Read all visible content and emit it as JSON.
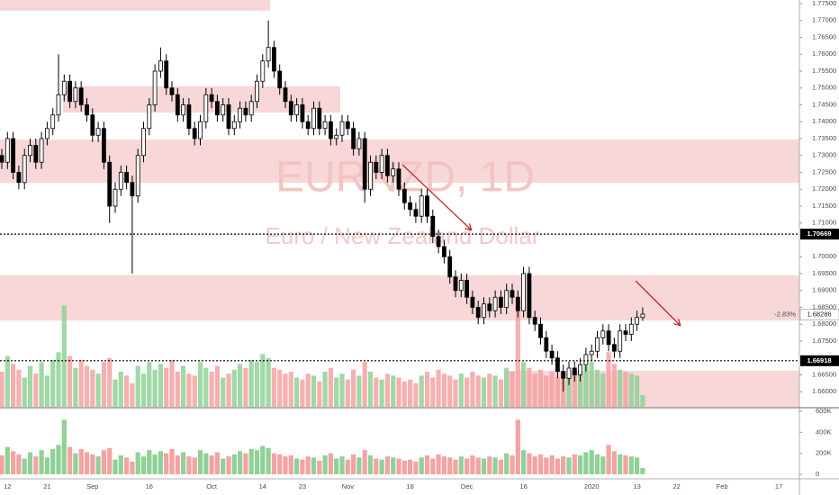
{
  "chart_data": {
    "type": "candlestick",
    "title": "EURNZD, 1D",
    "subtitle": "Euro / New Zealand Dollar",
    "categories": [
      null,
      "12",
      null,
      null,
      null,
      null,
      null,
      null,
      "21",
      null,
      null,
      null,
      null,
      null,
      null,
      null,
      "Sep",
      null,
      null,
      null,
      null,
      null,
      null,
      null,
      null,
      null,
      "16",
      null,
      null,
      null,
      null,
      null,
      null,
      null,
      null,
      null,
      null,
      "Oct",
      null,
      null,
      null,
      null,
      null,
      null,
      null,
      null,
      "14",
      null,
      null,
      null,
      null,
      null,
      null,
      "23",
      null,
      null,
      null,
      null,
      null,
      null,
      null,
      "Nov",
      null,
      null,
      null,
      null,
      null,
      null,
      null,
      null,
      null,
      null,
      "18",
      null,
      null,
      null,
      null,
      null,
      null,
      null,
      null,
      null,
      "Dec",
      null,
      null,
      null,
      null,
      null,
      null,
      null,
      null,
      null,
      "16",
      null,
      null,
      null,
      null,
      null,
      null,
      null,
      null,
      null,
      null,
      null,
      "2020",
      null,
      null,
      null,
      null,
      null,
      null,
      null,
      "13",
      null,
      null,
      null,
      null,
      null,
      null,
      "22",
      null,
      null,
      null,
      null,
      null,
      null,
      null,
      "Feb",
      null,
      null,
      null,
      null,
      null,
      null,
      null,
      null,
      null,
      "17",
      null,
      null
    ],
    "open": [
      1.73,
      1.728,
      1.735,
      1.725,
      1.722,
      1.73,
      1.733,
      1.728,
      1.735,
      1.738,
      1.742,
      1.748,
      1.752,
      1.746,
      1.75,
      1.745,
      1.742,
      1.736,
      1.738,
      1.728,
      1.715,
      1.72,
      1.725,
      1.722,
      1.718,
      1.73,
      1.738,
      1.745,
      1.755,
      1.758,
      1.75,
      1.748,
      1.742,
      1.745,
      1.738,
      1.735,
      1.74,
      1.748,
      1.746,
      1.742,
      1.745,
      1.738,
      1.74,
      1.744,
      1.742,
      1.746,
      1.752,
      1.758,
      1.762,
      1.755,
      1.75,
      1.746,
      1.742,
      1.745,
      1.74,
      1.738,
      1.744,
      1.738,
      1.74,
      1.735,
      1.736,
      1.74,
      1.738,
      1.732,
      1.735,
      1.72,
      1.728,
      1.725,
      1.73,
      1.724,
      1.726,
      1.72,
      1.716,
      1.714,
      1.712,
      1.718,
      1.712,
      1.706,
      1.703,
      1.7,
      1.694,
      1.69,
      1.693,
      1.688,
      1.685,
      1.682,
      1.686,
      1.684,
      1.688,
      1.685,
      1.69,
      1.688,
      1.684,
      1.695,
      1.682,
      1.68,
      1.676,
      1.672,
      1.67,
      1.666,
      1.664,
      1.667,
      1.665,
      1.668,
      1.671,
      1.672,
      1.676,
      1.678,
      1.674,
      1.672,
      1.678,
      1.677,
      1.68,
      1.682,
      null,
      null,
      null,
      null,
      null,
      null,
      null,
      null,
      null,
      null,
      null,
      null,
      null,
      null,
      null,
      null,
      null,
      null,
      null,
      null,
      null,
      null,
      null,
      null,
      null,
      null
    ],
    "high": [
      1.732,
      1.737,
      1.737,
      1.727,
      1.732,
      1.735,
      1.735,
      1.737,
      1.74,
      1.744,
      1.76,
      1.754,
      1.754,
      1.752,
      1.752,
      1.747,
      1.744,
      1.74,
      1.74,
      1.73,
      1.722,
      1.727,
      1.727,
      1.724,
      1.732,
      1.74,
      1.747,
      1.757,
      1.762,
      1.76,
      1.752,
      1.75,
      1.747,
      1.747,
      1.74,
      1.742,
      1.75,
      1.75,
      1.748,
      1.747,
      1.747,
      1.742,
      1.746,
      1.746,
      1.748,
      1.754,
      1.76,
      1.77,
      1.764,
      1.757,
      1.752,
      1.748,
      1.747,
      1.747,
      1.742,
      1.746,
      1.746,
      1.742,
      1.742,
      1.738,
      1.742,
      1.742,
      1.74,
      1.737,
      1.737,
      1.73,
      1.73,
      1.732,
      1.732,
      1.728,
      1.728,
      1.722,
      1.718,
      1.716,
      1.72,
      1.72,
      1.714,
      1.708,
      1.705,
      1.702,
      1.696,
      1.695,
      1.695,
      1.69,
      1.687,
      1.688,
      1.688,
      1.69,
      1.69,
      1.692,
      1.692,
      1.69,
      1.697,
      1.697,
      1.684,
      1.682,
      1.678,
      1.674,
      1.672,
      1.668,
      1.669,
      1.669,
      1.67,
      1.673,
      1.674,
      1.678,
      1.68,
      1.68,
      1.676,
      1.68,
      1.68,
      1.682,
      1.684,
      1.685,
      null,
      null,
      null,
      null,
      null,
      null,
      null,
      null,
      null,
      null,
      null,
      null,
      null,
      null,
      null,
      null,
      null,
      null,
      null,
      null,
      null,
      null,
      null,
      null,
      null,
      null
    ],
    "low": [
      1.726,
      1.726,
      1.723,
      1.72,
      1.72,
      1.728,
      1.726,
      1.726,
      1.733,
      1.736,
      1.74,
      1.746,
      1.744,
      1.744,
      1.743,
      1.74,
      1.734,
      1.734,
      1.726,
      1.71,
      1.713,
      1.718,
      1.72,
      1.695,
      1.716,
      1.728,
      1.736,
      1.743,
      1.753,
      1.748,
      1.746,
      1.74,
      1.74,
      1.736,
      1.733,
      1.733,
      1.738,
      1.744,
      1.74,
      1.74,
      1.736,
      1.736,
      1.738,
      1.74,
      1.74,
      1.744,
      1.75,
      1.756,
      1.753,
      1.748,
      1.744,
      1.74,
      1.74,
      1.738,
      1.736,
      1.736,
      1.736,
      1.736,
      1.733,
      1.733,
      1.734,
      1.736,
      1.73,
      1.73,
      1.716,
      1.718,
      1.723,
      1.723,
      1.722,
      1.722,
      1.718,
      1.714,
      1.712,
      1.71,
      1.71,
      1.71,
      1.704,
      1.701,
      1.698,
      1.692,
      1.688,
      1.688,
      1.686,
      1.683,
      1.68,
      1.68,
      1.682,
      1.682,
      1.683,
      1.683,
      1.686,
      1.682,
      1.682,
      1.68,
      1.678,
      1.674,
      1.67,
      1.668,
      1.664,
      1.66,
      1.662,
      1.663,
      1.663,
      1.666,
      1.669,
      1.67,
      1.674,
      1.672,
      1.67,
      1.67,
      1.675,
      1.675,
      1.678,
      1.681,
      null,
      null,
      null,
      null,
      null,
      null,
      null,
      null,
      null,
      null,
      null,
      null,
      null,
      null,
      null,
      null,
      null,
      null,
      null,
      null,
      null,
      null,
      null,
      null,
      null,
      null
    ],
    "close": [
      1.728,
      1.735,
      1.725,
      1.722,
      1.73,
      1.733,
      1.728,
      1.735,
      1.738,
      1.742,
      1.748,
      1.752,
      1.746,
      1.75,
      1.745,
      1.742,
      1.736,
      1.738,
      1.728,
      1.715,
      1.72,
      1.725,
      1.722,
      1.718,
      1.73,
      1.738,
      1.745,
      1.755,
      1.758,
      1.75,
      1.748,
      1.742,
      1.745,
      1.738,
      1.735,
      1.74,
      1.748,
      1.746,
      1.742,
      1.745,
      1.738,
      1.74,
      1.744,
      1.742,
      1.746,
      1.752,
      1.758,
      1.762,
      1.755,
      1.75,
      1.746,
      1.742,
      1.745,
      1.74,
      1.738,
      1.744,
      1.738,
      1.74,
      1.735,
      1.736,
      1.74,
      1.738,
      1.732,
      1.735,
      1.72,
      1.728,
      1.725,
      1.73,
      1.724,
      1.726,
      1.72,
      1.716,
      1.714,
      1.712,
      1.718,
      1.712,
      1.706,
      1.703,
      1.7,
      1.694,
      1.69,
      1.693,
      1.688,
      1.685,
      1.682,
      1.686,
      1.684,
      1.688,
      1.685,
      1.69,
      1.688,
      1.684,
      1.695,
      1.682,
      1.68,
      1.676,
      1.672,
      1.67,
      1.666,
      1.664,
      1.667,
      1.665,
      1.668,
      1.671,
      1.672,
      1.676,
      1.678,
      1.674,
      1.672,
      1.678,
      1.677,
      1.68,
      1.682,
      1.683,
      null,
      null,
      null,
      null,
      null,
      null,
      null,
      null,
      null,
      null,
      null,
      null,
      null,
      null,
      null,
      null,
      null,
      null,
      null,
      null,
      null,
      null,
      null,
      null,
      null,
      null
    ],
    "volume": [
      180000,
      260000,
      220000,
      190000,
      150000,
      210000,
      170000,
      230000,
      160000,
      240000,
      280000,
      520000,
      260000,
      200000,
      240000,
      210000,
      190000,
      170000,
      230000,
      250000,
      140000,
      180000,
      160000,
      120000,
      210000,
      170000,
      230000,
      190000,
      220000,
      200000,
      240000,
      180000,
      210000,
      170000,
      160000,
      230000,
      200000,
      180000,
      210000,
      150000,
      170000,
      190000,
      220000,
      200000,
      240000,
      230000,
      270000,
      250000,
      200000,
      190000,
      170000,
      180000,
      150000,
      140000,
      170000,
      160000,
      130000,
      180000,
      200000,
      150000,
      170000,
      140000,
      190000,
      160000,
      230000,
      180000,
      150000,
      140000,
      170000,
      160000,
      150000,
      130000,
      140000,
      120000,
      160000,
      180000,
      150000,
      190000,
      170000,
      160000,
      140000,
      170000,
      150000,
      180000,
      160000,
      150000,
      170000,
      160000,
      140000,
      200000,
      180000,
      520000,
      230000,
      200000,
      170000,
      190000,
      160000,
      180000,
      150000,
      170000,
      160000,
      190000,
      180000,
      210000,
      230000,
      190000,
      170000,
      280000,
      220000,
      190000,
      180000,
      170000,
      160000,
      60000,
      null,
      null,
      null,
      null,
      null,
      null,
      null,
      null,
      null,
      null,
      null,
      null,
      null,
      null,
      null,
      null,
      null,
      null,
      null,
      null,
      null,
      null,
      null,
      null,
      null,
      null
    ],
    "up_color": "#ffffff",
    "down_color": "#000000",
    "volume_up_color": "#8fd196",
    "volume_down_color": "#f4a2a2",
    "zone_color": "#f2c2c2",
    "ylim": [
      1.65553,
      1.77607
    ],
    "yticks": [
      {
        "value": 1.775,
        "label": "1.77500"
      },
      {
        "value": 1.77,
        "label": "1.77000"
      },
      {
        "value": 1.765,
        "label": "1.76500"
      },
      {
        "value": 1.76,
        "label": "1.76000"
      },
      {
        "value": 1.755,
        "label": "1.75500"
      },
      {
        "value": 1.75,
        "label": "1.75000"
      },
      {
        "value": 1.745,
        "label": "1.74500"
      },
      {
        "value": 1.74,
        "label": "1.74000"
      },
      {
        "value": 1.735,
        "label": "1.73500"
      },
      {
        "value": 1.73,
        "label": "1.73000"
      },
      {
        "value": 1.725,
        "label": "1.72500"
      },
      {
        "value": 1.72,
        "label": "1.72000"
      },
      {
        "value": 1.715,
        "label": "1.71500"
      },
      {
        "value": 1.71,
        "label": "1.71000"
      },
      {
        "value": 1.7,
        "label": "1.70000"
      },
      {
        "value": 1.695,
        "label": "1.69500"
      },
      {
        "value": 1.69,
        "label": "1.69000"
      },
      {
        "value": 1.685,
        "label": "1.68500"
      },
      {
        "value": 1.68,
        "label": "1.68000"
      },
      {
        "value": 1.675,
        "label": "1.67500"
      },
      {
        "value": 1.665,
        "label": "1.66500"
      },
      {
        "value": 1.66,
        "label": "1.66000"
      }
    ],
    "volume_ylim": [
      0,
      600000
    ],
    "volume_yticks": [
      0,
      {
        "value": 200000,
        "label": "200K"
      },
      {
        "value": 400000,
        "label": "400K"
      },
      {
        "value": 600000,
        "label": "600K"
      }
    ],
    "price_lines": [
      {
        "value": 1.70669,
        "label": "1.70669"
      },
      {
        "value": 1.66918,
        "label": "1.66918"
      }
    ],
    "last_price": {
      "value": 1.68286,
      "label": "1.68286"
    },
    "change_label": "-2.83%",
    "zones": [
      {
        "low": 1.7729,
        "high": 1.7761
      },
      {
        "low": 1.7427,
        "high": 1.7505
      },
      {
        "low": 1.7219,
        "high": 1.7347
      },
      {
        "low": 1.6811,
        "high": 1.6945
      },
      {
        "low": 1.6555,
        "high": 1.6662
      }
    ]
  }
}
